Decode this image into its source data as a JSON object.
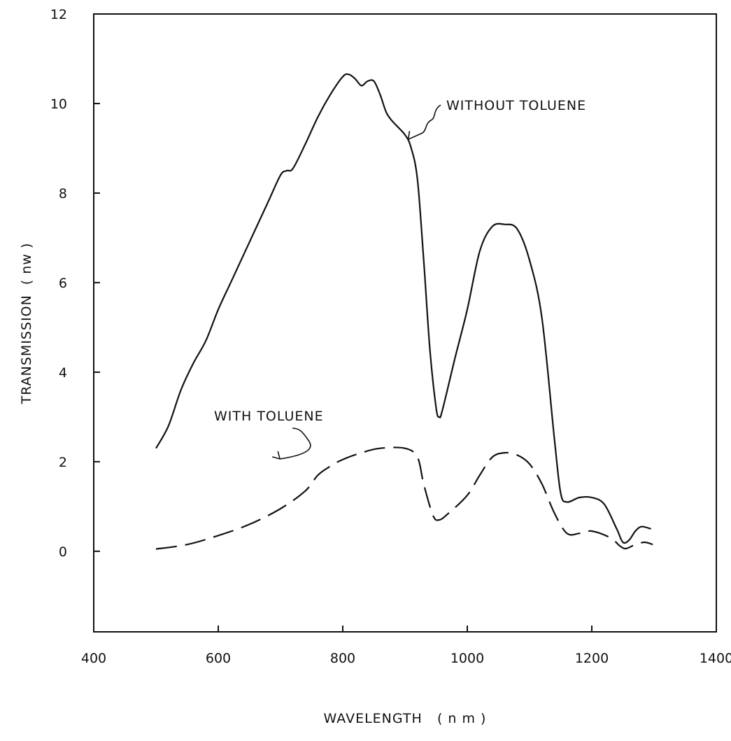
{
  "chart_data": {
    "type": "line",
    "xlabel": "WAVELENGTH   ( n m )",
    "ylabel": "TRANSMISSION  ( nw )",
    "xlim": [
      400,
      1400
    ],
    "ylim": [
      -1.8,
      12
    ],
    "x_ticks": [
      400,
      600,
      800,
      1000,
      1200,
      1400
    ],
    "x_tick_labels": [
      "400",
      "600",
      "800",
      "1000",
      "1200",
      "1400"
    ],
    "y_ticks": [
      0,
      2,
      4,
      6,
      8,
      10,
      12
    ],
    "y_tick_labels": [
      "0",
      "2",
      "4",
      "6",
      "8",
      "10",
      "12"
    ],
    "grid": false,
    "series": [
      {
        "name": "WITHOUT  TOLUENE",
        "style": "solid",
        "points": [
          [
            500,
            2.3
          ],
          [
            520,
            2.8
          ],
          [
            540,
            3.6
          ],
          [
            560,
            4.2
          ],
          [
            580,
            4.7
          ],
          [
            600,
            5.4
          ],
          [
            620,
            6.0
          ],
          [
            650,
            6.9
          ],
          [
            680,
            7.8
          ],
          [
            700,
            8.4
          ],
          [
            710,
            8.5
          ],
          [
            720,
            8.55
          ],
          [
            740,
            9.1
          ],
          [
            760,
            9.7
          ],
          [
            780,
            10.2
          ],
          [
            800,
            10.6
          ],
          [
            810,
            10.65
          ],
          [
            820,
            10.55
          ],
          [
            830,
            10.4
          ],
          [
            840,
            10.5
          ],
          [
            850,
            10.5
          ],
          [
            860,
            10.2
          ],
          [
            870,
            9.8
          ],
          [
            880,
            9.6
          ],
          [
            900,
            9.3
          ],
          [
            910,
            9.0
          ],
          [
            920,
            8.3
          ],
          [
            930,
            6.5
          ],
          [
            940,
            4.5
          ],
          [
            950,
            3.2
          ],
          [
            955,
            3.0
          ],
          [
            960,
            3.15
          ],
          [
            980,
            4.3
          ],
          [
            1000,
            5.4
          ],
          [
            1020,
            6.7
          ],
          [
            1040,
            7.25
          ],
          [
            1060,
            7.3
          ],
          [
            1080,
            7.2
          ],
          [
            1100,
            6.5
          ],
          [
            1120,
            5.2
          ],
          [
            1140,
            2.5
          ],
          [
            1150,
            1.3
          ],
          [
            1160,
            1.1
          ],
          [
            1180,
            1.2
          ],
          [
            1200,
            1.2
          ],
          [
            1220,
            1.05
          ],
          [
            1240,
            0.5
          ],
          [
            1250,
            0.2
          ],
          [
            1260,
            0.25
          ],
          [
            1270,
            0.45
          ],
          [
            1280,
            0.55
          ],
          [
            1295,
            0.5
          ]
        ]
      },
      {
        "name": "WITH  TOLUENE",
        "style": "dashed",
        "points": [
          [
            500,
            0.05
          ],
          [
            550,
            0.15
          ],
          [
            600,
            0.35
          ],
          [
            650,
            0.6
          ],
          [
            700,
            0.95
          ],
          [
            740,
            1.35
          ],
          [
            760,
            1.7
          ],
          [
            780,
            1.9
          ],
          [
            800,
            2.05
          ],
          [
            830,
            2.2
          ],
          [
            860,
            2.3
          ],
          [
            900,
            2.3
          ],
          [
            920,
            2.1
          ],
          [
            930,
            1.5
          ],
          [
            945,
            0.8
          ],
          [
            955,
            0.7
          ],
          [
            970,
            0.85
          ],
          [
            1000,
            1.25
          ],
          [
            1020,
            1.7
          ],
          [
            1040,
            2.1
          ],
          [
            1060,
            2.2
          ],
          [
            1080,
            2.15
          ],
          [
            1100,
            1.95
          ],
          [
            1120,
            1.5
          ],
          [
            1140,
            0.85
          ],
          [
            1160,
            0.4
          ],
          [
            1180,
            0.4
          ],
          [
            1200,
            0.45
          ],
          [
            1230,
            0.3
          ],
          [
            1245,
            0.12
          ],
          [
            1255,
            0.06
          ],
          [
            1270,
            0.15
          ],
          [
            1285,
            0.2
          ],
          [
            1298,
            0.15
          ]
        ]
      }
    ],
    "annotations": [
      {
        "text": "WITHOUT  TOLUENE",
        "points_to": [
          905,
          9.2
        ]
      },
      {
        "text": "WITH  TOLUENE",
        "points_to": [
          780,
          2.0
        ]
      }
    ]
  }
}
